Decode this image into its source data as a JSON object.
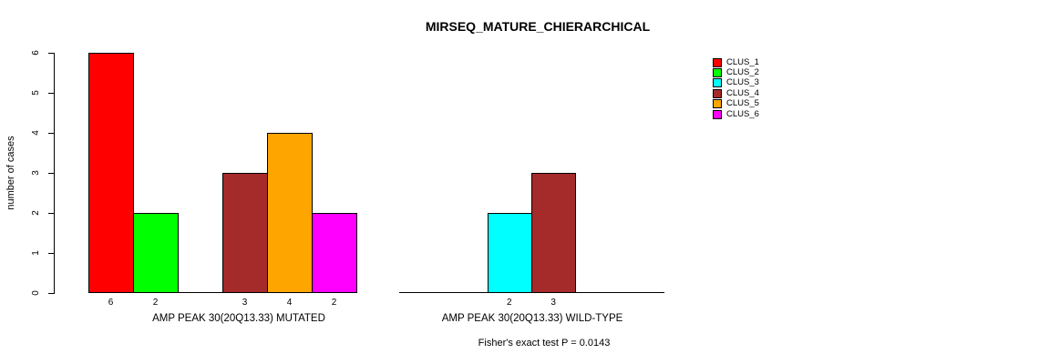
{
  "title": "MIRSEQ_MATURE_CHIERARCHICAL",
  "footnote": "Fisher's exact test P = 0.0143",
  "y_axis_label": "number of cases",
  "chart_data": {
    "type": "bar",
    "title": "MIRSEQ_MATURE_CHIERARCHICAL",
    "xlabel": "",
    "ylabel": "number of cases",
    "ylim": [
      0,
      6
    ],
    "yticks": [
      0,
      1,
      2,
      3,
      4,
      5,
      6
    ],
    "grid": false,
    "legend_position": "right",
    "bar_outline_color": "#000000",
    "categories": [
      "AMP PEAK 30(20Q13.33) MUTATED",
      "AMP PEAK 30(20Q13.33) WILD-TYPE"
    ],
    "series": [
      {
        "name": "CLUS_1",
        "color": "#ff0000",
        "values": [
          6,
          0
        ]
      },
      {
        "name": "CLUS_2",
        "color": "#00ff00",
        "values": [
          2,
          0
        ]
      },
      {
        "name": "CLUS_3",
        "color": "#00ffff",
        "values": [
          0,
          2
        ]
      },
      {
        "name": "CLUS_4",
        "color": "#a52a2a",
        "values": [
          3,
          3
        ]
      },
      {
        "name": "CLUS_5",
        "color": "#ffa500",
        "values": [
          4,
          0
        ]
      },
      {
        "name": "CLUS_6",
        "color": "#ff00ff",
        "values": [
          2,
          0
        ]
      }
    ],
    "value_labels_note": "bar value shown under each nonzero bar",
    "footnote": "Fisher's exact test P = 0.0143"
  }
}
